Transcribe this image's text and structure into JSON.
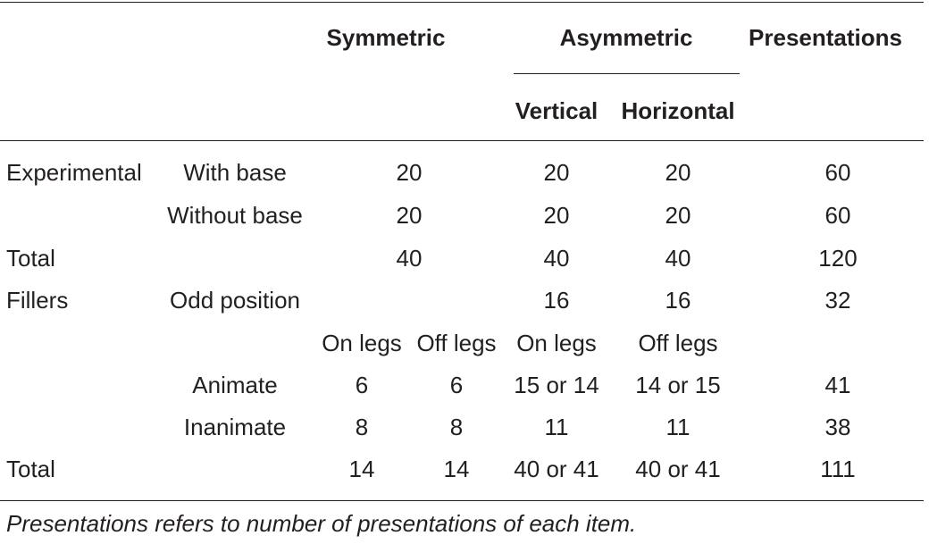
{
  "header": {
    "symmetric": "Symmetric",
    "asymmetric": "Asymmetric",
    "presentations": "Presentations",
    "vertical": "Vertical",
    "horizontal": "Horizontal"
  },
  "rows": {
    "experimental_with_base": {
      "group": "Experimental",
      "sub": "With base",
      "symmetric": "20",
      "vertical": "20",
      "horizontal": "20",
      "presentations": "60"
    },
    "experimental_without_base": {
      "sub": "Without base",
      "symmetric": "20",
      "vertical": "20",
      "horizontal": "20",
      "presentations": "60"
    },
    "total_experimental": {
      "group": "Total",
      "symmetric": "40",
      "vertical": "40",
      "horizontal": "40",
      "presentations": "120"
    },
    "fillers_odd": {
      "group": "Fillers",
      "sub": "Odd position",
      "vertical": "16",
      "horizontal": "16",
      "presentations": "32"
    },
    "legs_header": {
      "sym_on": "On legs",
      "sym_off": "Off legs",
      "asym_on": "On legs",
      "asym_off": "Off legs"
    },
    "animate": {
      "sub": "Animate",
      "sym_on": "6",
      "sym_off": "6",
      "asym_on": "15 or 14",
      "asym_off": "14 or 15",
      "presentations": "41"
    },
    "inanimate": {
      "sub": "Inanimate",
      "sym_on": "8",
      "sym_off": "8",
      "asym_on": "11",
      "asym_off": "11",
      "presentations": "38"
    },
    "total_fillers": {
      "group": "Total",
      "sym_on": "14",
      "sym_off": "14",
      "asym_on": "40 or 41",
      "asym_off": "40 or 41",
      "presentations": "111"
    }
  },
  "footnote": "Presentations refers to number of presentations of each item."
}
